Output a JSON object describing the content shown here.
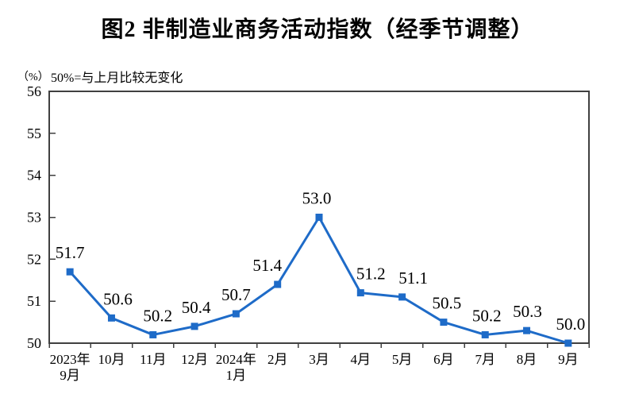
{
  "header": {
    "title": "图2 非制造业商务活动指数（经季节调整）",
    "y_axis_unit": "（%）",
    "subtitle": "50%=与上月比较无变化"
  },
  "colors": {
    "line": "#1E6BC8",
    "axis": "#404040",
    "text": "#000000",
    "background": "#ffffff"
  },
  "chart_data": {
    "type": "line",
    "title": "图2 非制造业商务活动指数（经季节调整）",
    "subtitle": "50%=与上月比较无变化",
    "unit_label": "（%）",
    "categories": [
      "2023年\n9月",
      "10月",
      "11月",
      "12月",
      "2024年\n1月",
      "2月",
      "3月",
      "4月",
      "5月",
      "6月",
      "7月",
      "8月",
      "9月"
    ],
    "values": [
      51.7,
      50.6,
      50.2,
      50.4,
      50.7,
      51.4,
      53.0,
      51.2,
      51.1,
      50.5,
      50.2,
      50.3,
      50.0
    ],
    "ylim": [
      50,
      56
    ],
    "y_ticks": [
      50,
      51,
      52,
      53,
      54,
      55,
      56
    ],
    "grid": false,
    "legend_position": "none",
    "marker": "square",
    "data_labels_visible": true,
    "data_label_decimals": 1
  }
}
